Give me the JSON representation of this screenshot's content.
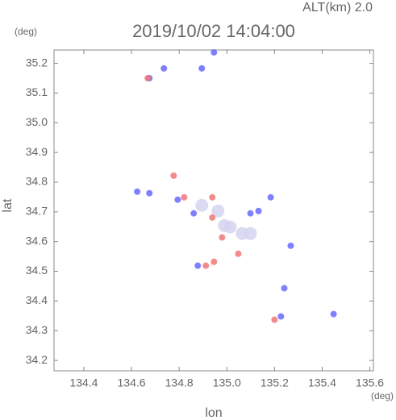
{
  "chart_data": {
    "type": "scatter",
    "title": "2019/10/02 14:04:00",
    "subtitle": "ALT(km) 2.0",
    "x_label": "lon",
    "y_label": "lat",
    "x_unit": "(deg)",
    "y_unit": "(deg)",
    "xlim": [
      134.275,
      135.615
    ],
    "ylim": [
      34.165,
      35.245
    ],
    "xticks": [
      134.4,
      134.6,
      134.8,
      {
        "value": 135,
        "label": "135.0"
      },
      135.2,
      135.4,
      135.6
    ],
    "yticks": [
      34.2,
      34.3,
      34.4,
      34.5,
      34.6,
      34.7,
      34.8,
      34.9,
      {
        "value": 35,
        "label": "35.0"
      },
      35.1,
      35.2
    ],
    "series": [
      {
        "color": "#d4d4f0",
        "x": [
          135.065,
          135.099,
          135.014,
          134.895,
          134.963,
          134.99
        ],
        "y": [
          34.627,
          34.627,
          34.649,
          34.722,
          34.703,
          34.654
        ]
      },
      {
        "color": "#6a6aff",
        "x": [
          134.736,
          134.675,
          134.895,
          134.946,
          134.624,
          134.675,
          134.861,
          134.878,
          135.241,
          135.227,
          135.448,
          135.099,
          135.133,
          135.184,
          135.268,
          134.794
        ],
        "y": [
          35.183,
          35.15,
          35.183,
          35.237,
          34.768,
          34.763,
          34.695,
          34.519,
          34.443,
          34.348,
          34.356,
          34.695,
          34.703,
          34.749,
          34.586,
          34.741
        ]
      },
      {
        "color": "#f07878",
        "x": [
          134.777,
          134.821,
          134.939,
          134.946,
          134.912,
          134.98,
          135.2,
          134.668,
          134.939,
          135.048
        ],
        "y": [
          34.822,
          34.749,
          34.749,
          34.532,
          34.519,
          34.614,
          34.337,
          35.15,
          34.681,
          34.559
        ]
      }
    ]
  }
}
